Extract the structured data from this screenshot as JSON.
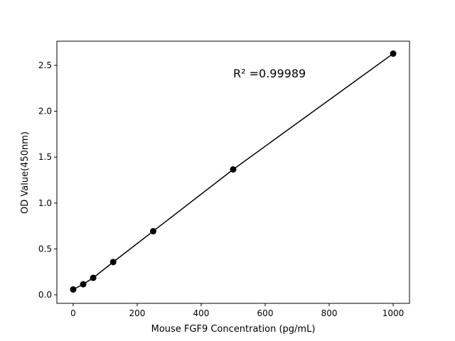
{
  "chart_data": {
    "type": "line",
    "x_label": "Mouse FGF9 Concentration (pg/mL)",
    "y_label": "OD Value(450nm)",
    "annotation": "R² =0.99989",
    "x": [
      0,
      31.25,
      62.5,
      125,
      250,
      500,
      1000
    ],
    "values": [
      0.058,
      0.115,
      0.185,
      0.357,
      0.693,
      1.366,
      2.628
    ],
    "color": "#000000",
    "xlim": [
      -51,
      1051
    ],
    "ylim": [
      -0.093,
      2.763
    ],
    "xticks": [
      0,
      200,
      400,
      600,
      800,
      1000
    ],
    "yticks": [
      {
        "value": 0,
        "label": "0.0"
      },
      {
        "value": 0.5,
        "label": "0.5"
      },
      {
        "value": 1,
        "label": "1.0"
      },
      {
        "value": 1.5,
        "label": "1.5"
      },
      {
        "value": 2,
        "label": "2.0"
      },
      {
        "value": 2.5,
        "label": "2.5"
      }
    ]
  }
}
